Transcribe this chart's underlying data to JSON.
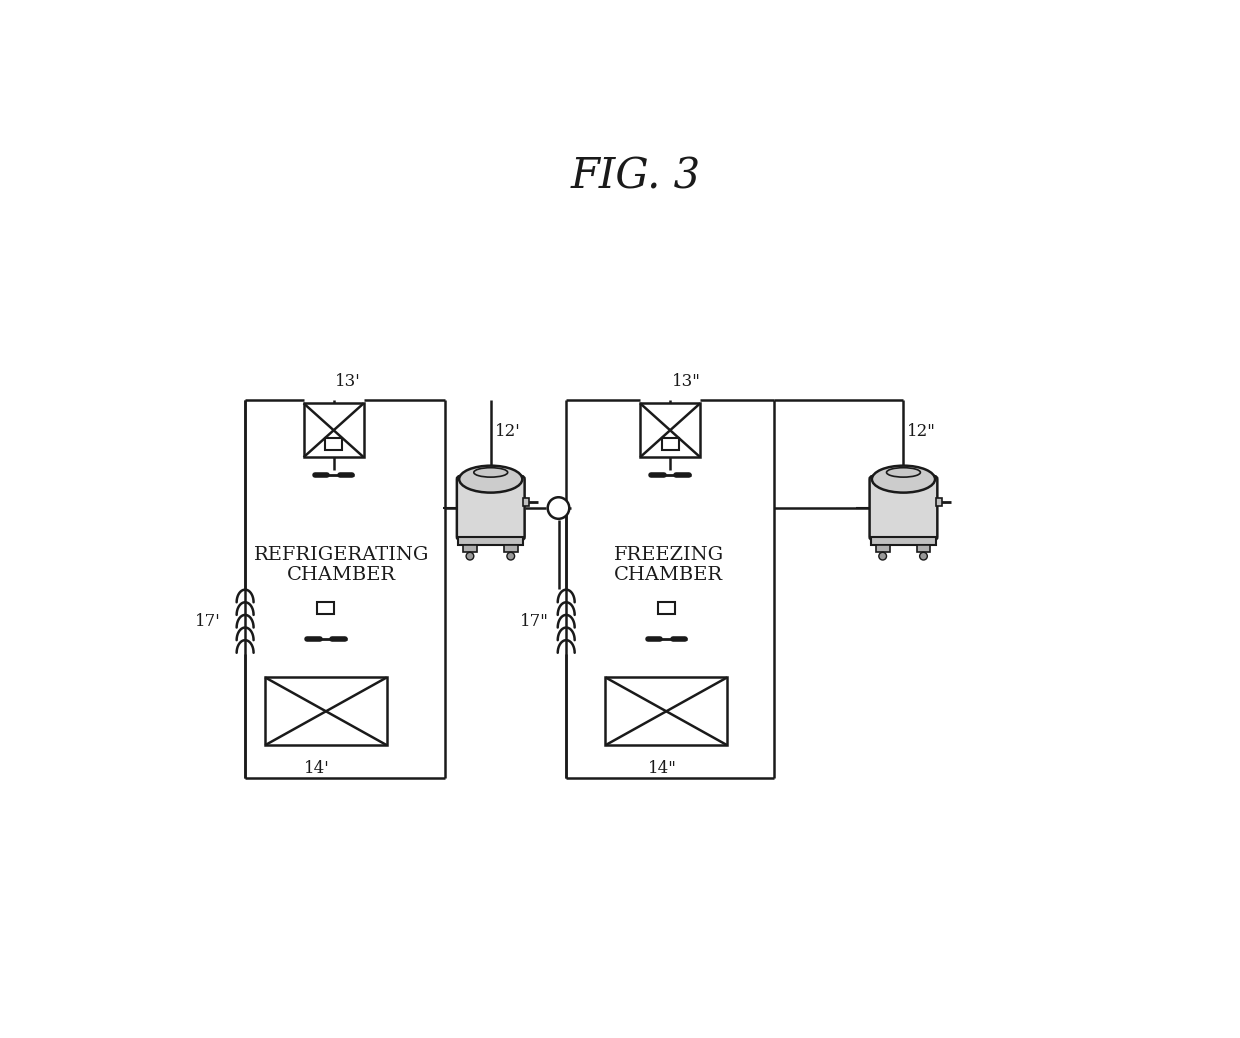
{
  "title": "FIG. 3",
  "title_font": "serif",
  "title_fontsize": 30,
  "title_style": "italic",
  "bg_color": "#ffffff",
  "line_color": "#1a1a1a",
  "line_width": 1.8,
  "labels": {
    "13p": "13'",
    "13pp": "13\"",
    "12p": "12'",
    "12pp": "12\"",
    "14p": "14'",
    "14pp": "14\"",
    "17p": "17'",
    "17pp": "17\"",
    "refrig": "REFRIGERATING\nCHAMBER",
    "freeze": "FREEZING\nCHAMBER"
  },
  "label_fontsize": 12,
  "chamber_fontsize": 14
}
